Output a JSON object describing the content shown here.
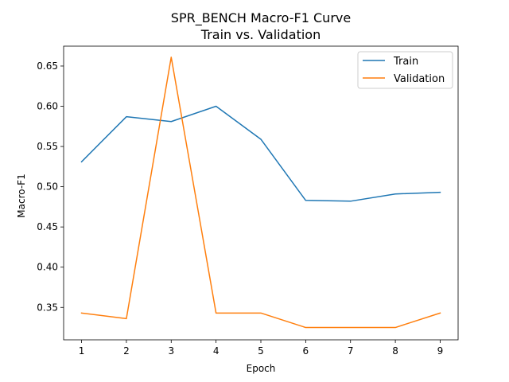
{
  "chart_data": {
    "type": "line",
    "title": [
      "SPR_BENCH Macro-F1 Curve",
      "Train vs. Validation"
    ],
    "xlabel": "Epoch",
    "ylabel": "Macro-F1",
    "x": [
      1,
      2,
      3,
      4,
      5,
      6,
      7,
      8,
      9
    ],
    "xticks": [
      "1",
      "2",
      "3",
      "4",
      "5",
      "6",
      "7",
      "8",
      "9"
    ],
    "yticks": [
      "0.35",
      "0.40",
      "0.45",
      "0.50",
      "0.55",
      "0.60",
      "0.65"
    ],
    "ytick_values": [
      0.35,
      0.4,
      0.45,
      0.5,
      0.55,
      0.6,
      0.65
    ],
    "xlim": [
      0.6,
      9.4
    ],
    "ylim": [
      0.3097,
      0.6747
    ],
    "grid": false,
    "legend": "top-right",
    "series": [
      {
        "name": "Train",
        "color": "#1f77b4",
        "values": [
          0.531,
          0.587,
          0.581,
          0.6,
          0.559,
          0.483,
          0.482,
          0.491,
          0.493
        ]
      },
      {
        "name": "Validation",
        "color": "#ff7f0e",
        "values": [
          0.343,
          0.336,
          0.661,
          0.343,
          0.343,
          0.325,
          0.325,
          0.325,
          0.343
        ]
      }
    ]
  }
}
